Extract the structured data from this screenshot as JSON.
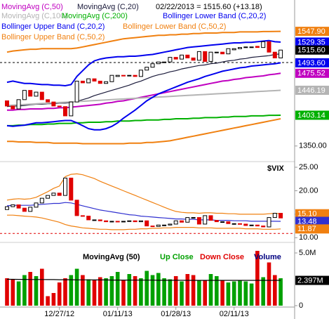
{
  "chart_data": [
    {
      "type": "candlestick",
      "title": "02/22/2013 = 1515.60 (+13.18)",
      "ylim": [
        1317,
        1602
      ],
      "yticks": [
        {
          "value": 1350,
          "label": "1350.00"
        }
      ],
      "up_color": "#000000",
      "down_color": "#e00000",
      "open": [
        1428,
        1419,
        1414,
        1430,
        1446,
        1436,
        1443,
        1430,
        1426,
        1419,
        1418,
        1402,
        1426,
        1462,
        1459,
        1466,
        1462,
        1458,
        1461,
        1470,
        1472,
        1471,
        1472,
        1470,
        1481,
        1486,
        1492,
        1494,
        1495,
        1503,
        1500,
        1507,
        1502,
        1498,
        1513,
        1496,
        1511,
        1512,
        1509,
        1516,
        1518,
        1520,
        1521,
        1522,
        1520,
        1530,
        1512,
        1502
      ],
      "close": [
        1419,
        1414,
        1430,
        1446,
        1436,
        1443,
        1430,
        1426,
        1419,
        1418,
        1402,
        1426,
        1462,
        1459,
        1466,
        1462,
        1458,
        1461,
        1472,
        1472,
        1471,
        1472,
        1470,
        1481,
        1486,
        1492,
        1495,
        1495,
        1503,
        1500,
        1507,
        1502,
        1498,
        1513,
        1496,
        1512,
        1512,
        1509,
        1518,
        1518,
        1520,
        1521,
        1521,
        1520,
        1530,
        1512,
        1502,
        1515.6
      ],
      "reference_lines": [
        {
          "value": 1494,
          "color": "#000000"
        }
      ],
      "series": [
        {
          "name": "MovingAvg (C,50)",
          "color": "#c000c0",
          "values": [
            1412,
            1412,
            1413,
            1413,
            1414,
            1414,
            1414,
            1415,
            1415,
            1416,
            1416,
            1417,
            1418,
            1419,
            1420,
            1421,
            1422,
            1424,
            1425,
            1427,
            1428,
            1430,
            1432,
            1434,
            1436,
            1438,
            1440,
            1442,
            1444,
            1446,
            1448,
            1450,
            1452,
            1454,
            1456,
            1458,
            1460,
            1462,
            1463,
            1465,
            1466,
            1468,
            1469,
            1470,
            1471,
            1473,
            1474,
            1475.52
          ]
        },
        {
          "name": "MovingAvg (C,20)",
          "color": "#1a1a3a",
          "values": [
            1418,
            1419,
            1419,
            1420,
            1421,
            1422,
            1422,
            1423,
            1423,
            1424,
            1424,
            1425,
            1427,
            1430,
            1433,
            1437,
            1440,
            1443,
            1446,
            1449,
            1452,
            1455,
            1459,
            1462,
            1466,
            1470,
            1473,
            1475,
            1478,
            1480,
            1483,
            1485,
            1487,
            1489,
            1490,
            1492,
            1493,
            1495,
            1497,
            1498,
            1500,
            1501,
            1503,
            1504,
            1505,
            1506,
            1508,
            1509
          ]
        },
        {
          "name": "MovingAvg (C,100)",
          "color": "#b4b4b4",
          "values": [
            1420,
            1420.6,
            1421.1,
            1421.7,
            1422.2,
            1422.8,
            1423.3,
            1423.9,
            1424.5,
            1425,
            1425.6,
            1426.1,
            1426.7,
            1427.2,
            1427.8,
            1428.4,
            1428.9,
            1429.5,
            1430,
            1430.6,
            1431.1,
            1431.7,
            1432.3,
            1432.8,
            1433.4,
            1433.9,
            1434.5,
            1435,
            1435.6,
            1436.2,
            1436.7,
            1437.3,
            1437.8,
            1438.4,
            1438.9,
            1439.5,
            1440.1,
            1440.6,
            1441.2,
            1441.7,
            1442.3,
            1442.8,
            1443.4,
            1444,
            1444.5,
            1445.1,
            1445.6,
            1446.19
          ]
        },
        {
          "name": "MovingAvg (C,200)",
          "color": "#00b000",
          "values": [
            1385,
            1385,
            1386,
            1386,
            1387,
            1387,
            1387,
            1388,
            1388,
            1389,
            1389,
            1389,
            1390,
            1390,
            1391,
            1391,
            1391,
            1392,
            1392,
            1393,
            1393,
            1393,
            1394,
            1394,
            1395,
            1395,
            1395,
            1396,
            1396,
            1397,
            1397,
            1397,
            1398,
            1398,
            1399,
            1399,
            1399,
            1400,
            1400,
            1401,
            1401,
            1401,
            1402,
            1402,
            1402,
            1403,
            1403,
            1403.14
          ]
        },
        {
          "name": "Bollinger Lower Band (C,20,2)",
          "color": "#0000ee",
          "values": [
            1385,
            1384,
            1385,
            1386,
            1388,
            1390,
            1390,
            1391,
            1392,
            1393,
            1394,
            1394,
            1390,
            1385,
            1380,
            1378,
            1378,
            1380,
            1384,
            1390,
            1398,
            1405,
            1412,
            1420,
            1428,
            1434,
            1440,
            1444,
            1448,
            1452,
            1456,
            1460,
            1463,
            1466,
            1470,
            1473,
            1476,
            1479,
            1481,
            1483,
            1485,
            1486,
            1488,
            1489,
            1490,
            1491,
            1492,
            1493.6
          ]
        },
        {
          "name": "Bollinger Upper Band (C,20,2)",
          "color": "#0000ee",
          "values": [
            1460,
            1462,
            1460,
            1458,
            1458,
            1457,
            1456,
            1456,
            1455,
            1455,
            1454,
            1456,
            1470,
            1480,
            1490,
            1497,
            1500,
            1502,
            1503,
            1504,
            1504,
            1505,
            1505,
            1506,
            1507,
            1508,
            1510,
            1512,
            1514,
            1516,
            1518,
            1520,
            1521,
            1522,
            1523,
            1524,
            1525,
            1526,
            1527,
            1528,
            1528,
            1529,
            1529,
            1530,
            1531,
            1532,
            1530,
            1529.35
          ]
        },
        {
          "name": "Bollinger Lower Band (C,50,2)",
          "color": "#f08010",
          "values": [
            1358,
            1358,
            1357,
            1357,
            1357,
            1356,
            1356,
            1356,
            1355,
            1355,
            1355,
            1355,
            1355,
            1354,
            1354,
            1354,
            1354,
            1354,
            1354,
            1354,
            1354,
            1355,
            1355,
            1355,
            1356,
            1356,
            1357,
            1358,
            1359,
            1361,
            1363,
            1365,
            1367,
            1369,
            1371,
            1373,
            1375,
            1377,
            1379,
            1381,
            1383,
            1385,
            1387,
            1389,
            1391,
            1393,
            1395,
            1397
          ]
        },
        {
          "name": "Bollinger Upper Band (C,50,2)",
          "color": "#f08010",
          "values": [
            1512,
            1514,
            1515,
            1516,
            1517,
            1517,
            1518,
            1518,
            1518,
            1518,
            1518,
            1518,
            1519,
            1521,
            1523,
            1525,
            1527,
            1529,
            1531,
            1533,
            1535,
            1536,
            1537,
            1538,
            1539,
            1540,
            1541,
            1541,
            1542,
            1542,
            1543,
            1543,
            1544,
            1544,
            1545,
            1545,
            1545,
            1546,
            1546,
            1546,
            1547,
            1547,
            1547,
            1547,
            1547.5,
            1547.5,
            1547.8,
            1547.9
          ]
        }
      ],
      "last_labels": [
        {
          "value": 1547.9,
          "label": "1547.90",
          "color": "#f08010"
        },
        {
          "value": 1529.35,
          "label": "1529.35",
          "color": "#0000ee"
        },
        {
          "value": 1515.6,
          "label": "1515.60",
          "color": "#000000"
        },
        {
          "value": 1493.6,
          "label": "1493.60",
          "color": "#0000ee"
        },
        {
          "value": 1475.52,
          "label": "1475.52",
          "color": "#c000c0"
        },
        {
          "value": 1446.19,
          "label": "1446.19",
          "color": "#b4b4b4"
        },
        {
          "value": 1403.14,
          "label": "1403.14",
          "color": "#00b000"
        }
      ]
    },
    {
      "type": "candlestick",
      "title": "$VIX",
      "ylim": [
        9,
        26.5
      ],
      "yticks": [
        {
          "value": 25,
          "label": "25.00"
        },
        {
          "value": 20,
          "label": "20.00"
        },
        {
          "value": 15,
          "label": "15.00"
        },
        {
          "value": 10,
          "label": "10.00"
        }
      ],
      "up_color": "#000000",
      "down_color": "#e00000",
      "open": [
        16.0,
        16.6,
        17.0,
        16.3,
        15.6,
        16.5,
        17.4,
        18.4,
        19.0,
        19.5,
        19.0,
        22.7,
        18.0,
        14.7,
        14.6,
        13.8,
        13.8,
        13.6,
        13.4,
        13.5,
        13.4,
        13.5,
        13.6,
        13.4,
        13.6,
        12.5,
        12.4,
        12.7,
        12.7,
        12.9,
        13.6,
        13.3,
        14.3,
        14.3,
        12.9,
        14.7,
        13.7,
        13.4,
        13.4,
        13.0,
        13.0,
        12.9,
        12.6,
        12.7,
        12.5,
        12.3,
        14.3,
        15.2
      ],
      "close": [
        16.6,
        17.0,
        16.3,
        15.6,
        16.5,
        17.4,
        18.4,
        19.0,
        19.5,
        19.0,
        22.7,
        18.0,
        14.7,
        14.6,
        13.8,
        13.8,
        13.6,
        13.4,
        13.5,
        13.4,
        13.5,
        13.6,
        13.4,
        13.6,
        12.5,
        12.4,
        12.7,
        12.7,
        12.9,
        13.6,
        13.3,
        14.3,
        14.3,
        12.9,
        14.7,
        13.7,
        13.4,
        13.4,
        13.0,
        13.0,
        12.9,
        12.6,
        12.7,
        12.5,
        12.3,
        14.3,
        15.2,
        14.2
      ],
      "reference_lines": [
        {
          "value": 10.9,
          "color": "#e00000"
        }
      ],
      "series": [
        {
          "color": "#f08010",
          "values": [
            18.0,
            18.2,
            18.3,
            18.2,
            18.3,
            18.6,
            19.2,
            19.8,
            20.5,
            21.0,
            23.0,
            23.5,
            23.6,
            23.4,
            23.0,
            22.6,
            22.0,
            21.5,
            21.0,
            20.5,
            20.0,
            19.5,
            19.0,
            18.5,
            18.0,
            17.5,
            17.0,
            16.5,
            16.0,
            15.6,
            15.4,
            15.3,
            15.3,
            15.2,
            15.3,
            15.3,
            15.2,
            15.2,
            15.1,
            15.1,
            15.0,
            15.0,
            15.0,
            15.0,
            15.0,
            15.1,
            15.2,
            15.1
          ]
        },
        {
          "color": "#f08010",
          "values": [
            14.8,
            14.8,
            14.7,
            14.6,
            14.5,
            14.4,
            14.2,
            13.9,
            13.6,
            13.3,
            12.8,
            12.5,
            12.3,
            12.1,
            12.0,
            11.9,
            11.8,
            11.8,
            11.7,
            11.7,
            11.7,
            11.8,
            11.8,
            11.9,
            11.9,
            12.0,
            12.0,
            12.1,
            12.1,
            12.2,
            12.2,
            12.2,
            12.2,
            12.1,
            12.1,
            12.1,
            12.0,
            12.0,
            12.0,
            12.0,
            12.0,
            11.9,
            11.9,
            11.9,
            11.8,
            11.8,
            11.8,
            11.87
          ]
        },
        {
          "color": "#3030d0",
          "values": [
            16.8,
            16.9,
            16.9,
            16.9,
            16.9,
            17.0,
            17.1,
            17.2,
            17.3,
            17.3,
            17.5,
            17.4,
            17.1,
            16.8,
            16.5,
            16.2,
            15.9,
            15.7,
            15.5,
            15.3,
            15.1,
            14.9,
            14.8,
            14.6,
            14.5,
            14.4,
            14.3,
            14.2,
            14.1,
            14.0,
            14.0,
            13.9,
            13.9,
            13.8,
            13.8,
            13.8,
            13.7,
            13.7,
            13.7,
            13.6,
            13.6,
            13.6,
            13.5,
            13.5,
            13.5,
            13.5,
            13.5,
            13.48
          ]
        }
      ],
      "last_labels": [
        {
          "value": 15.1,
          "label": "15.10",
          "color": "#f08010"
        },
        {
          "value": 13.48,
          "label": "13.48",
          "color": "#3030d0"
        },
        {
          "value": 11.87,
          "label": "11.87",
          "color": "#f08010"
        }
      ]
    },
    {
      "type": "bar",
      "ylim": [
        0,
        6000000
      ],
      "yticks": [
        {
          "value": 5000000,
          "label": "5.0M"
        },
        0
      ],
      "categories": [
        null,
        null,
        null,
        null,
        null,
        null,
        null,
        null,
        null,
        "12/27/12",
        null,
        null,
        null,
        null,
        null,
        null,
        null,
        null,
        null,
        "01/11/13",
        null,
        null,
        null,
        null,
        null,
        null,
        null,
        null,
        null,
        "01/28/13",
        null,
        null,
        null,
        null,
        null,
        null,
        null,
        null,
        null,
        "02/11/13",
        null,
        null,
        null,
        null,
        null,
        null,
        null,
        null
      ],
      "series": [
        {
          "name": "Volume",
          "color": "#000080",
          "values": [
            2600000,
            2500000,
            2300000,
            2900000,
            3200000,
            2800000,
            3500000,
            900000,
            1200000,
            2200000,
            2600000,
            2900000,
            3500000,
            2900000,
            2500000,
            2400000,
            2700000,
            2600000,
            2800000,
            3200000,
            2400000,
            3000000,
            2800000,
            2600000,
            3300000,
            2900000,
            3100000,
            2600000,
            2500000,
            2800000,
            2300000,
            3000000,
            2900000,
            2400000,
            2400000,
            3000000,
            2800000,
            2400000,
            2200000,
            2300000,
            2400000,
            2300000,
            2100000,
            5200000,
            2700000,
            4100000,
            2900000,
            2600000
          ]
        },
        {
          "name": "MovingAvg (50)",
          "color": "#000000",
          "values": [
            2500000,
            2500000,
            2490000,
            2490000,
            2480000,
            2480000,
            2480000,
            2470000,
            2470000,
            2460000,
            2460000,
            2460000,
            2450000,
            2450000,
            2450000,
            2440000,
            2440000,
            2440000,
            2430000,
            2430000,
            2430000,
            2430000,
            2420000,
            2420000,
            2420000,
            2420000,
            2410000,
            2410000,
            2410000,
            2410000,
            2410000,
            2400000,
            2400000,
            2400000,
            2400000,
            2400000,
            2400000,
            2400000,
            2400000,
            2400000,
            2400000,
            2400000,
            2400000,
            2400000,
            2400000,
            2400000,
            2398000,
            2397000
          ]
        }
      ],
      "legend_colors": [
        {
          "name": "Up Close",
          "color": "#00a000"
        },
        {
          "name": "Down Close",
          "color": "#e00000"
        }
      ],
      "last_labels": [
        {
          "value": 2397000,
          "label": "2.397M",
          "color": "#000000"
        }
      ]
    }
  ]
}
